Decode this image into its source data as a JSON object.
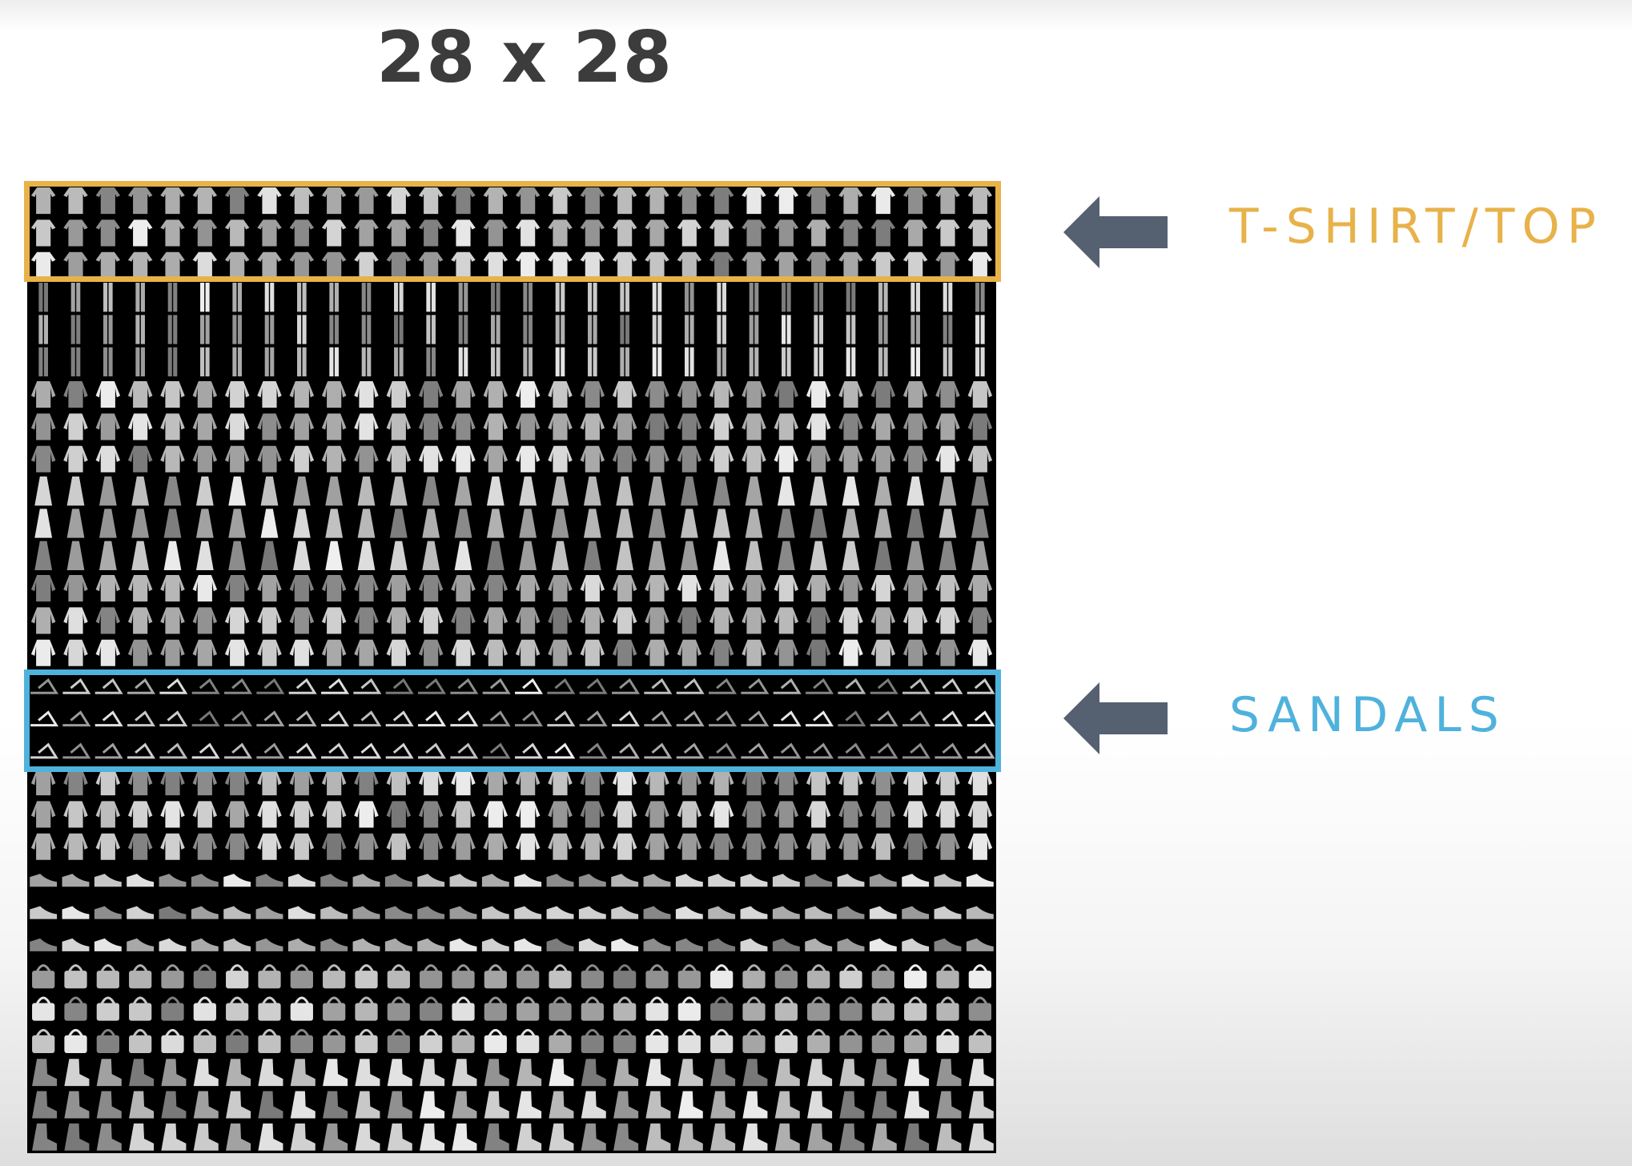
{
  "title": "28 x 28",
  "image_grid": {
    "description_rows": [
      "tshirt",
      "trouser",
      "pullover",
      "dress",
      "coat",
      "sandal",
      "shirt",
      "sneaker",
      "bag",
      "ankle_boot"
    ]
  },
  "annotations": [
    {
      "label": "T-SHIRT/TOP",
      "color": "#e8b24a",
      "icon": "arrow-left-icon"
    },
    {
      "label": "SANDALS",
      "color": "#4fb2dc",
      "icon": "arrow-left-icon"
    }
  ],
  "colors": {
    "title": "#3c3c3c",
    "arrow": "#556070",
    "tshirt_highlight": "#e8b24a",
    "sandals_highlight": "#4fb2dc",
    "grid_background": "#000000"
  }
}
